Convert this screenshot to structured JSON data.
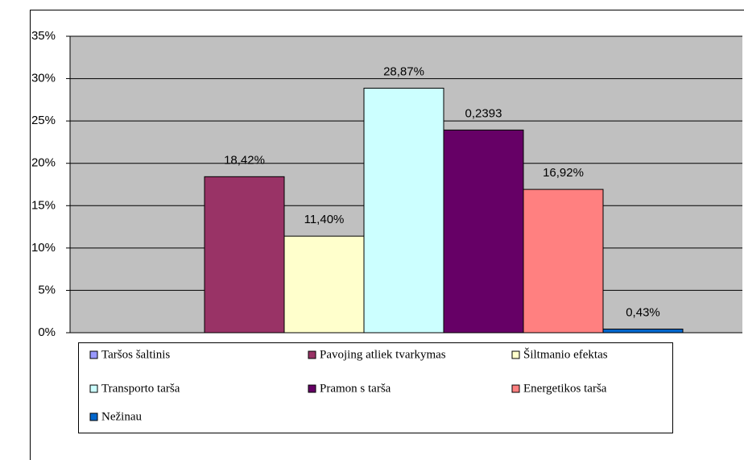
{
  "chart_data": {
    "type": "bar",
    "series": [
      {
        "name": "Taršos šaltinis",
        "color": "#9999ff",
        "values": [
          null
        ]
      },
      {
        "name": "Pavojing atliek tvarkymas",
        "color": "#993366",
        "values": [
          18.42
        ],
        "value_labels": [
          "18,42%"
        ]
      },
      {
        "name": "Šiltmanio efektas",
        "color": "#ffffcc",
        "values": [
          11.4
        ],
        "value_labels": [
          "11,40%"
        ]
      },
      {
        "name": "Transporto tarša",
        "color": "#ccffff",
        "values": [
          28.87
        ],
        "value_labels": [
          "28,87%"
        ]
      },
      {
        "name": "Pramon s tarša",
        "color": "#660066",
        "values": [
          23.93
        ],
        "value_labels": [
          "0,2393"
        ]
      },
      {
        "name": "Energetikos tarša",
        "color": "#ff8080",
        "values": [
          16.92
        ],
        "value_labels": [
          "16,92%"
        ]
      },
      {
        "name": "Nežinau",
        "color": "#0066cc",
        "values": [
          0.43
        ],
        "value_labels": [
          "0,43%"
        ]
      }
    ],
    "ylim": [
      0,
      35
    ],
    "yticks": [
      {
        "value": 0,
        "label": "0%"
      },
      {
        "value": 5,
        "label": "5%"
      },
      {
        "value": 10,
        "label": "10%"
      },
      {
        "value": 15,
        "label": "15%"
      },
      {
        "value": 20,
        "label": "20%"
      },
      {
        "value": 25,
        "label": "25%"
      },
      {
        "value": 30,
        "label": "30%"
      },
      {
        "value": 35,
        "label": "35%"
      }
    ],
    "grid": true,
    "legend": "bottom",
    "plot_background": "#c0c0c0"
  }
}
